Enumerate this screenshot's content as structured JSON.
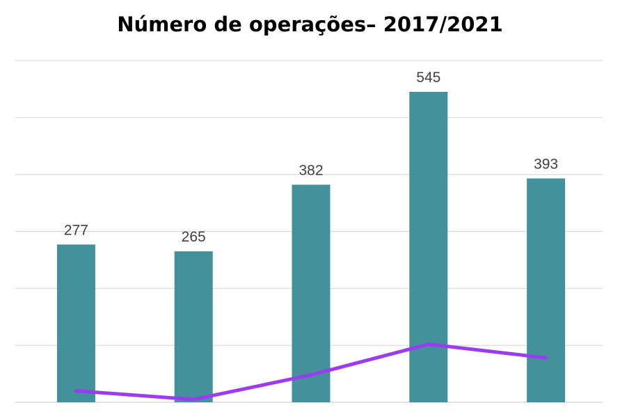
{
  "chart_data": {
    "type": "bar",
    "title": "Número de operações– 2017/2021",
    "categories": [
      "",
      "",
      "",
      "",
      ""
    ],
    "series": [
      {
        "type": "bar",
        "values": [
          277,
          265,
          382,
          545,
          393
        ],
        "color": "#43919a"
      },
      {
        "type": "line",
        "values": [
          20,
          5,
          48,
          102,
          78
        ],
        "color": "#9b3cf3"
      }
    ],
    "data_labels": [
      "277",
      "265",
      "382",
      "545",
      "393"
    ],
    "ylim": [
      0,
      600
    ],
    "grid": true,
    "legend": "none",
    "colors": {
      "bar": "#43919a",
      "line": "#9b3cf3",
      "grid": "#d9d9d9",
      "label": "#404040"
    }
  }
}
